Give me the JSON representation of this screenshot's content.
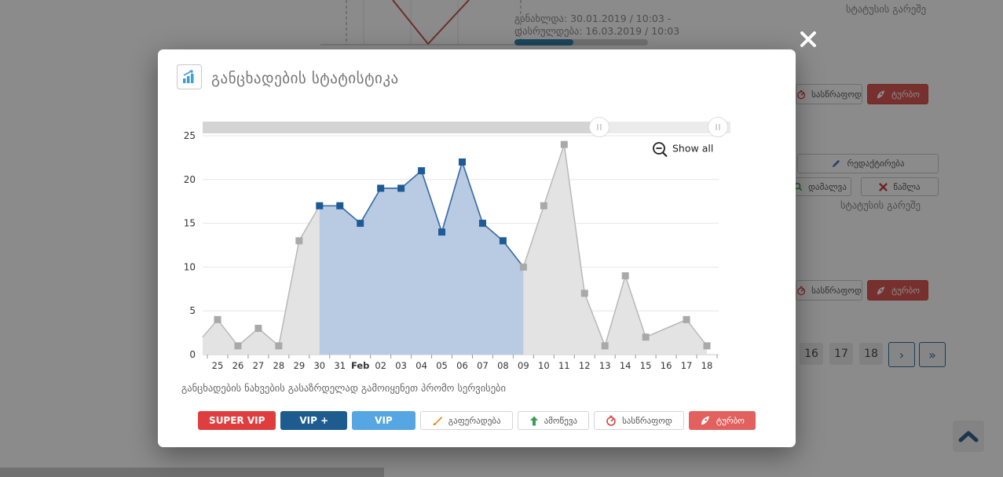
{
  "modal": {
    "title": "განცხადების სტატისტიკა",
    "caption": "განცხადების ნახვების გასაზრდელად გამოიყენეთ პრომო სერვისები",
    "show_all_label": "Show all",
    "promo_buttons": [
      {
        "label": "SUPER VIP",
        "color": "#e03e3e"
      },
      {
        "label": "VIP +",
        "color": "#1e5c90"
      },
      {
        "label": "VIP",
        "color": "#55a6e3"
      },
      {
        "label": "გაფერადება",
        "icon": "paintbrush-icon"
      },
      {
        "label": "ამოწევა",
        "icon": "arrow-up-icon"
      },
      {
        "label": "სასწრაფოდ",
        "icon": "stopwatch-icon"
      },
      {
        "label": "ტურბო",
        "icon": "rocket-icon",
        "color": "#e2605e"
      }
    ]
  },
  "chart_data": {
    "type": "area",
    "title": "განცხადების სტატისტიკა",
    "x_labels": [
      "25",
      "26",
      "27",
      "28",
      "29",
      "30",
      "31",
      "Feb",
      "02",
      "03",
      "04",
      "05",
      "06",
      "07",
      "08",
      "09",
      "10",
      "11",
      "12",
      "13",
      "14",
      "15",
      "16",
      "17",
      "18"
    ],
    "series": [
      {
        "name": "views",
        "values": [
          4,
          1,
          3,
          1,
          13,
          17,
          17,
          15,
          19,
          19,
          21,
          14,
          22,
          15,
          13,
          10,
          17,
          24,
          7,
          1,
          9,
          2,
          3,
          4,
          1
        ]
      }
    ],
    "left_edge_value": 2,
    "ylim": [
      0,
      25
    ],
    "y_ticks": [
      0,
      5,
      10,
      15,
      20,
      25
    ],
    "bold_label_index": 7,
    "no_marker_indices": [
      22
    ],
    "selected_range": {
      "start_index": 5,
      "end_index": 15,
      "blue_marker_end": 14
    },
    "legend": "off",
    "grid": "horizontal",
    "colors": {
      "line_selected": "#3c6fa6",
      "fill_selected": "#b9cbe2",
      "marker_selected": "#1d5a96",
      "line_rest": "#b8b8b8",
      "fill_rest": "#e3e3e3",
      "marker_rest": "#a9a9a9",
      "grid": "#e6e6e6",
      "axis": "#c9c9c9",
      "label": "#333333",
      "nav_track": "#ebebeb",
      "nav_range": "#d4d4d4"
    }
  },
  "background": {
    "updated_line1": "განახლდა: 30.01.2019 / 10:03 -",
    "updated_line2": "დასრულდება: 16.03.2019 / 10:03",
    "progress_percent": 44,
    "status_text_top": "სტატუსის გარეშე",
    "status_text_mid": "სტატუსის გარეშე",
    "buttons": {
      "urgent": "სასწრაფოდ",
      "turbo": "ტურბო",
      "edit": "რედაქტირება",
      "hide": "დამალვა",
      "delete": "წაშლა"
    },
    "pagination": {
      "pages": [
        "16",
        "17",
        "18"
      ],
      "next": "›",
      "last": "»"
    }
  }
}
